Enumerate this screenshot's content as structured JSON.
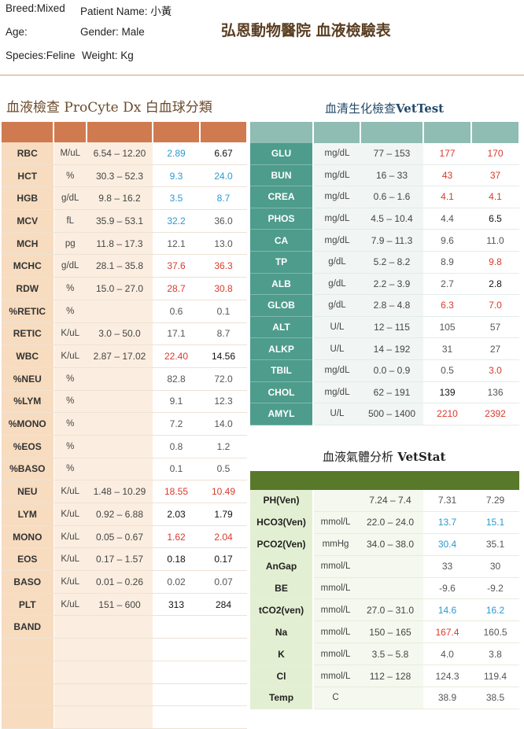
{
  "header": {
    "breed": "Breed:Mixed",
    "patient": "Patient Name:  小黃",
    "age": "Age:",
    "gender": "Gender: Male",
    "species": "Species:Feline",
    "weight": "Weight:     Kg",
    "clinic": "弘恩動物醫院 血液檢驗表"
  },
  "cbc": {
    "title": "血液檢查 ProCyte Dx 白血球分類",
    "rows": [
      {
        "name": "RBC",
        "unit": "M/uL",
        "range": "6.54 – 12.20",
        "v1": "2.89",
        "c1": "blue",
        "v2": "6.67",
        "c2": "blk"
      },
      {
        "name": "HCT",
        "unit": "%",
        "range": "30.3 – 52.3",
        "v1": "9.3",
        "c1": "blue",
        "v2": "24.0",
        "c2": "blue"
      },
      {
        "name": "HGB",
        "unit": "g/dL",
        "range": "9.8 – 16.2",
        "v1": "3.5",
        "c1": "blue",
        "v2": "8.7",
        "c2": "blue"
      },
      {
        "name": "MCV",
        "unit": "fL",
        "range": "35.9 – 53.1",
        "v1": "32.2",
        "c1": "blue",
        "v2": "36.0",
        "c2": "gray"
      },
      {
        "name": "MCH",
        "unit": "pg",
        "range": "11.8 – 17.3",
        "v1": "12.1",
        "c1": "gray",
        "v2": "13.0",
        "c2": "gray"
      },
      {
        "name": "MCHC",
        "unit": "g/dL",
        "range": "28.1 – 35.8",
        "v1": "37.6",
        "c1": "red",
        "v2": "36.3",
        "c2": "red"
      },
      {
        "name": "RDW",
        "unit": "%",
        "range": "15.0 – 27.0",
        "v1": "28.7",
        "c1": "red",
        "v2": "30.8",
        "c2": "red"
      },
      {
        "name": "%RETIC",
        "unit": "%",
        "range": "",
        "v1": "0.6",
        "c1": "gray",
        "v2": "0.1",
        "c2": "gray"
      },
      {
        "name": "RETIC",
        "unit": "K/uL",
        "range": "3.0 – 50.0",
        "v1": "17.1",
        "c1": "gray",
        "v2": "8.7",
        "c2": "gray"
      },
      {
        "name": "WBC",
        "unit": "K/uL",
        "range": "2.87 – 17.02",
        "v1": "22.40",
        "c1": "red",
        "v2": "14.56",
        "c2": "blk"
      },
      {
        "name": "%NEU",
        "unit": "%",
        "range": "",
        "v1": "82.8",
        "c1": "gray",
        "v2": "72.0",
        "c2": "gray"
      },
      {
        "name": "%LYM",
        "unit": "%",
        "range": "",
        "v1": "9.1",
        "c1": "gray",
        "v2": "12.3",
        "c2": "gray"
      },
      {
        "name": "%MONO",
        "unit": "%",
        "range": "",
        "v1": "7.2",
        "c1": "gray",
        "v2": "14.0",
        "c2": "gray"
      },
      {
        "name": "%EOS",
        "unit": "%",
        "range": "",
        "v1": "0.8",
        "c1": "gray",
        "v2": "1.2",
        "c2": "gray"
      },
      {
        "name": "%BASO",
        "unit": "%",
        "range": "",
        "v1": "0.1",
        "c1": "gray",
        "v2": "0.5",
        "c2": "gray"
      },
      {
        "name": "NEU",
        "unit": "K/uL",
        "range": "1.48 – 10.29",
        "v1": "18.55",
        "c1": "red",
        "v2": "10.49",
        "c2": "red"
      },
      {
        "name": "LYM",
        "unit": "K/uL",
        "range": "0.92 – 6.88",
        "v1": "2.03",
        "c1": "blk",
        "v2": "1.79",
        "c2": "blk"
      },
      {
        "name": "MONO",
        "unit": "K/uL",
        "range": "0.05 – 0.67",
        "v1": "1.62",
        "c1": "red",
        "v2": "2.04",
        "c2": "red"
      },
      {
        "name": "EOS",
        "unit": "K/uL",
        "range": "0.17 – 1.57",
        "v1": "0.18",
        "c1": "blk",
        "v2": "0.17",
        "c2": "blk"
      },
      {
        "name": "BASO",
        "unit": "K/uL",
        "range": "0.01 – 0.26",
        "v1": "0.02",
        "c1": "gray",
        "v2": "0.07",
        "c2": "gray"
      },
      {
        "name": "PLT",
        "unit": "K/uL",
        "range": "151 – 600",
        "v1": "313",
        "c1": "blk",
        "v2": "284",
        "c2": "blk"
      },
      {
        "name": "BAND",
        "unit": "",
        "range": "",
        "v1": "",
        "c1": "gray",
        "v2": "",
        "c2": "gray"
      },
      {
        "name": "",
        "unit": "",
        "range": "",
        "v1": "",
        "c1": "gray",
        "v2": "",
        "c2": "gray"
      },
      {
        "name": "",
        "unit": "",
        "range": "",
        "v1": "",
        "c1": "gray",
        "v2": "",
        "c2": "gray"
      },
      {
        "name": "",
        "unit": "",
        "range": "",
        "v1": "",
        "c1": "gray",
        "v2": "",
        "c2": "gray"
      },
      {
        "name": "",
        "unit": "",
        "range": "",
        "v1": "",
        "c1": "gray",
        "v2": "",
        "c2": "gray"
      }
    ]
  },
  "chem": {
    "title_zh": "血清生化檢查",
    "title_en": "VetTest",
    "rows": [
      {
        "name": "GLU",
        "unit": "mg/dL",
        "range": "77 – 153",
        "v1": "177",
        "c1": "red",
        "v2": "170",
        "c2": "red"
      },
      {
        "name": "BUN",
        "unit": "mg/dL",
        "range": "16 – 33",
        "v1": "43",
        "c1": "red",
        "v2": "37",
        "c2": "red"
      },
      {
        "name": "CREA",
        "unit": "mg/dL",
        "range": "0.6 – 1.6",
        "v1": "4.1",
        "c1": "red",
        "v2": "4.1",
        "c2": "red"
      },
      {
        "name": "PHOS",
        "unit": "mg/dL",
        "range": "4.5 – 10.4",
        "v1": "4.4",
        "c1": "gray",
        "v2": "6.5",
        "c2": "blk"
      },
      {
        "name": "CA",
        "unit": "mg/dL",
        "range": "7.9 – 11.3",
        "v1": "9.6",
        "c1": "gray",
        "v2": "11.0",
        "c2": "gray"
      },
      {
        "name": "TP",
        "unit": "g/dL",
        "range": "5.2 – 8.2",
        "v1": "8.9",
        "c1": "gray",
        "v2": "9.8",
        "c2": "red"
      },
      {
        "name": "ALB",
        "unit": "g/dL",
        "range": "2.2 – 3.9",
        "v1": "2.7",
        "c1": "gray",
        "v2": "2.8",
        "c2": "blk"
      },
      {
        "name": "GLOB",
        "unit": "g/dL",
        "range": "2.8 – 4.8",
        "v1": "6.3",
        "c1": "red",
        "v2": "7.0",
        "c2": "red"
      },
      {
        "name": "ALT",
        "unit": "U/L",
        "range": "12 – 115",
        "v1": "105",
        "c1": "gray",
        "v2": "57",
        "c2": "gray"
      },
      {
        "name": "ALKP",
        "unit": "U/L",
        "range": "14 – 192",
        "v1": "31",
        "c1": "gray",
        "v2": "27",
        "c2": "gray"
      },
      {
        "name": "TBIL",
        "unit": "mg/dL",
        "range": "0.0 – 0.9",
        "v1": "0.5",
        "c1": "gray",
        "v2": "3.0",
        "c2": "red"
      },
      {
        "name": "CHOL",
        "unit": "mg/dL",
        "range": "62 – 191",
        "v1": "139",
        "c1": "blk",
        "v2": "136",
        "c2": "gray"
      },
      {
        "name": "AMYL",
        "unit": "U/L",
        "range": "500 – 1400",
        "v1": "2210",
        "c1": "red",
        "v2": "2392",
        "c2": "red"
      }
    ]
  },
  "gas": {
    "title_zh": "血液氣體分析",
    "title_en": "VetStat",
    "rows": [
      {
        "name": "PH(Ven)",
        "unit": "",
        "range": "7.24 – 7.4",
        "v1": "7.31",
        "c1": "gray",
        "v2": "7.29",
        "c2": "gray"
      },
      {
        "name": "HCO3(Ven)",
        "unit": "mmol/L",
        "range": "22.0 – 24.0",
        "v1": "13.7",
        "c1": "blue",
        "v2": "15.1",
        "c2": "blue"
      },
      {
        "name": "PCO2(Ven)",
        "unit": "mmHg",
        "range": "34.0 – 38.0",
        "v1": "30.4",
        "c1": "blue",
        "v2": "35.1",
        "c2": "gray"
      },
      {
        "name": "AnGap",
        "unit": "mmol/L",
        "range": "",
        "v1": "33",
        "c1": "gray",
        "v2": "30",
        "c2": "gray"
      },
      {
        "name": "BE",
        "unit": "mmol/L",
        "range": "",
        "v1": "-9.6",
        "c1": "gray",
        "v2": "-9.2",
        "c2": "gray"
      },
      {
        "name": "tCO2(ven)",
        "unit": "mmol/L",
        "range": "27.0 – 31.0",
        "v1": "14.6",
        "c1": "blue",
        "v2": "16.2",
        "c2": "blue"
      },
      {
        "name": "Na",
        "unit": "mmol/L",
        "range": "150 – 165",
        "v1": "167.4",
        "c1": "red",
        "v2": "160.5",
        "c2": "gray"
      },
      {
        "name": "K",
        "unit": "mmol/L",
        "range": "3.5 – 5.8",
        "v1": "4.0",
        "c1": "gray",
        "v2": "3.8",
        "c2": "gray"
      },
      {
        "name": "Cl",
        "unit": "mmol/L",
        "range": "112 – 128",
        "v1": "124.3",
        "c1": "gray",
        "v2": "119.4",
        "c2": "gray"
      },
      {
        "name": "Temp",
        "unit": "C",
        "range": "",
        "v1": "38.9",
        "c1": "gray",
        "v2": "38.5",
        "c2": "gray"
      }
    ]
  }
}
